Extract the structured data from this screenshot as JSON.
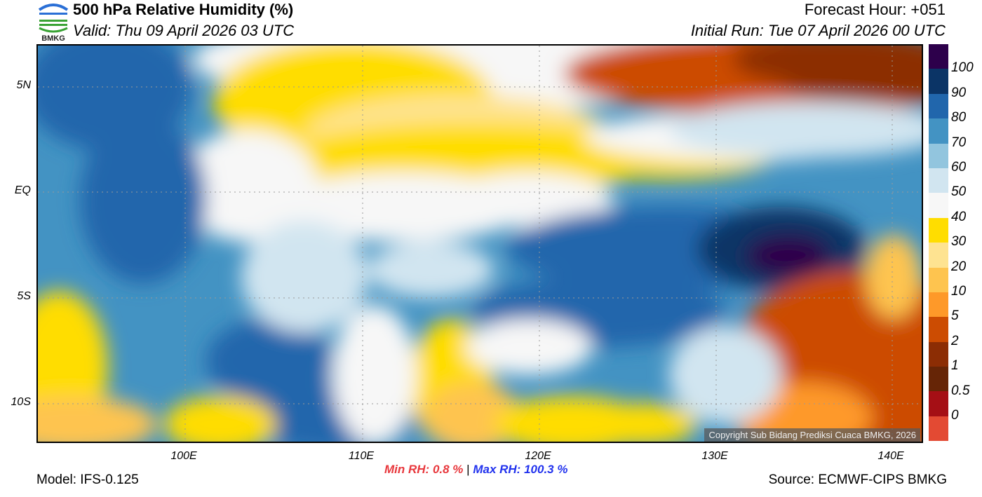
{
  "header": {
    "title": "500 hPa Relative Humidity (%)",
    "valid": "Valid: Thu 09 April 2026 03 UTC",
    "forecast_hour": "Forecast Hour: +051",
    "initial_run": "Initial Run: Tue 07 April 2026 00 UTC",
    "logo_text": "BMKG"
  },
  "axes": {
    "lat_labels": [
      "5N",
      "EQ",
      "5S",
      "10S"
    ],
    "lon_labels": [
      "100E",
      "110E",
      "120E",
      "130E",
      "140E"
    ]
  },
  "colorbar": {
    "colors": [
      "#2d004b",
      "#0b3466",
      "#2166ac",
      "#4393c3",
      "#92c5de",
      "#d1e5f0",
      "#f7f7f7",
      "#ffdd00",
      "#fee391",
      "#fec44f",
      "#fe9929",
      "#cc4c02",
      "#8c2d04",
      "#662506",
      "#a50f15",
      "#e34a33"
    ],
    "labels": [
      "100",
      "90",
      "80",
      "70",
      "60",
      "50",
      "40",
      "30",
      "20",
      "10",
      "5",
      "2",
      "1",
      "0.5",
      "0"
    ]
  },
  "copyright": "Copyright Sub Bidang Prediksi Cuaca BMKG, 2026",
  "stats": {
    "min_label": "Min RH:",
    "min_value": "0.8 %",
    "separator": "|",
    "max_label": "Max RH:",
    "max_value": "100.3 %",
    "min_color": "#e8383d",
    "max_color": "#2233ee"
  },
  "footer": {
    "model": "Model: IFS-0.125",
    "source": "Source: ECMWF-CIPS BMKG"
  }
}
